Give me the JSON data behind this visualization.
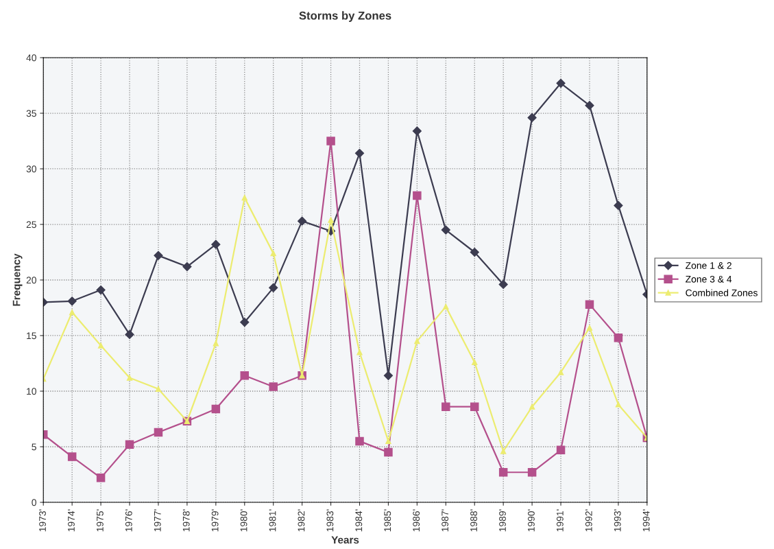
{
  "chart_data": {
    "type": "line",
    "title": "Storms by Zones",
    "xlabel": "Years",
    "ylabel": "Frequency",
    "categories": [
      "1973'",
      "1974'",
      "1975'",
      "1976'",
      "1977'",
      "1978'",
      "1979'",
      "1980'",
      "1981'",
      "1982'",
      "1983'",
      "1984'",
      "1985'",
      "1986'",
      "1987'",
      "1988'",
      "1989'",
      "1990'",
      "1991'",
      "1992'",
      "1993'",
      "1994'"
    ],
    "series": [
      {
        "name": "Zone 1 & 2",
        "color": "#3c3c50",
        "marker": "diamond",
        "values": [
          18.0,
          18.1,
          19.1,
          15.1,
          22.2,
          21.2,
          23.2,
          16.2,
          19.3,
          25.3,
          24.4,
          31.4,
          11.4,
          33.4,
          24.5,
          22.5,
          19.6,
          34.6,
          37.7,
          35.7,
          26.7,
          18.7
        ]
      },
      {
        "name": "Zone 3 & 4",
        "color": "#b4508c",
        "marker": "square",
        "values": [
          6.1,
          4.1,
          2.2,
          5.2,
          6.3,
          7.3,
          8.4,
          11.4,
          10.4,
          11.4,
          32.5,
          5.5,
          4.5,
          27.6,
          8.6,
          8.6,
          2.7,
          2.7,
          4.7,
          17.8,
          14.8,
          5.8
        ]
      },
      {
        "name": "Combined Zones",
        "color": "#ecec70",
        "marker": "triangle",
        "values": [
          11.1,
          17.1,
          14.1,
          11.2,
          10.2,
          7.3,
          14.3,
          27.4,
          22.4,
          11.4,
          25.4,
          13.5,
          5.5,
          14.5,
          17.6,
          12.6,
          4.6,
          8.6,
          11.7,
          15.7,
          8.8,
          5.8
        ]
      }
    ],
    "ylim": [
      0,
      40
    ],
    "yticks": [
      0,
      5,
      10,
      15,
      20,
      25,
      30,
      35,
      40
    ],
    "grid": true,
    "legend": "right",
    "line_style": "solid"
  }
}
